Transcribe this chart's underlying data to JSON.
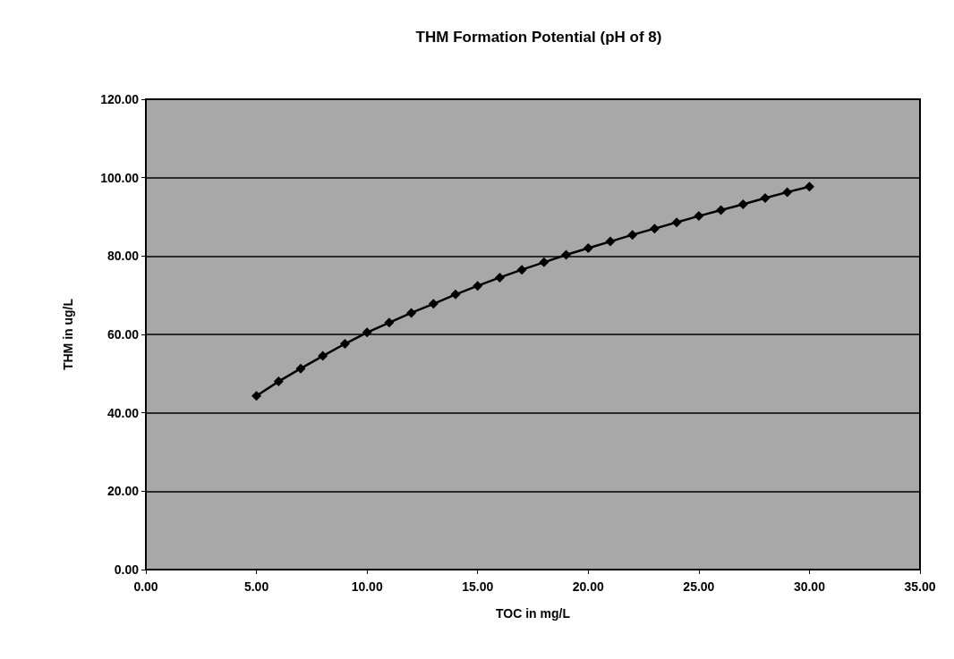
{
  "chart_data": {
    "type": "line",
    "title": "THM Formation Potential (pH of 8)",
    "xlabel": "TOC in mg/L",
    "ylabel": "THM in ug/L",
    "x": [
      5,
      6,
      7,
      8,
      9,
      10,
      11,
      12,
      13,
      14,
      15,
      16,
      17,
      18,
      19,
      20,
      21,
      22,
      23,
      24,
      25,
      26,
      27,
      28,
      29,
      30
    ],
    "series": [
      {
        "color": "#000000",
        "values": [
          44.3,
          48,
          51.3,
          54.5,
          57.6,
          60.5,
          63,
          65.5,
          67.8,
          70.2,
          72.4,
          74.5,
          76.5,
          78.4,
          80.3,
          82,
          83.7,
          85.4,
          87,
          88.6,
          90.2,
          91.7,
          93.2,
          94.8,
          96.3,
          97.7
        ]
      }
    ],
    "xlim": [
      0,
      35
    ],
    "xticks": [
      {
        "value": 0,
        "label": "0.00"
      },
      {
        "value": 5,
        "label": "5.00"
      },
      {
        "value": 10,
        "label": "10.00"
      },
      {
        "value": 15,
        "label": "15.00"
      },
      {
        "value": 20,
        "label": "20.00"
      },
      {
        "value": 25,
        "label": "25.00"
      },
      {
        "value": 30,
        "label": "30.00"
      },
      {
        "value": 35,
        "label": "35.00"
      }
    ],
    "ylim": [
      0,
      120
    ],
    "yticks": [
      {
        "value": 0,
        "label": "0.00"
      },
      {
        "value": 20,
        "label": "20.00"
      },
      {
        "value": 40,
        "label": "40.00"
      },
      {
        "value": 60,
        "label": "60.00"
      },
      {
        "value": 80,
        "label": "80.00"
      },
      {
        "value": 100,
        "label": "100.00"
      },
      {
        "value": 120,
        "label": "120.00"
      }
    ],
    "grid": "y",
    "marker": "diamond",
    "line_style": "solid"
  }
}
